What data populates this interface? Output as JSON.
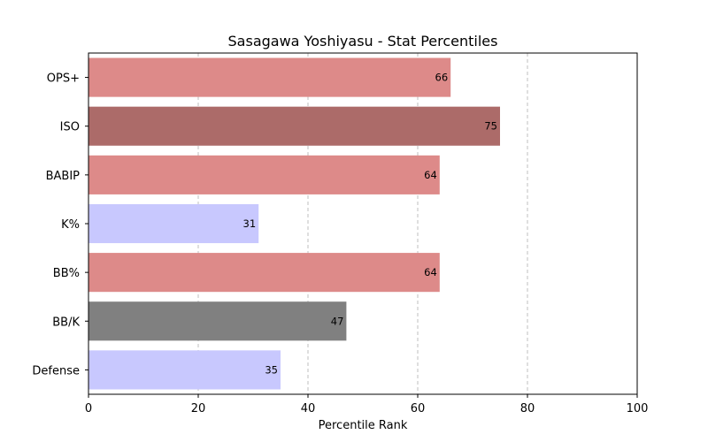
{
  "chart_data": {
    "type": "bar",
    "orientation": "horizontal",
    "title": "Sasagawa Yoshiyasu - Stat Percentiles",
    "xlabel": "Percentile Rank",
    "ylabel": "",
    "xlim": [
      0,
      100
    ],
    "xticks": [
      "0",
      "20",
      "40",
      "60",
      "80",
      "100"
    ],
    "grid": "vertical-dashed",
    "legend": "none",
    "categories": [
      "OPS+",
      "ISO",
      "BABIP",
      "K%",
      "BB%",
      "BB/K",
      "Defense"
    ],
    "values": [
      66,
      75,
      64,
      31,
      64,
      47,
      35
    ],
    "value_labels": [
      "66",
      "75",
      "64",
      "31",
      "64",
      "47",
      "35"
    ],
    "colors": [
      "#dd8a89",
      "#ac6b69",
      "#dd8a89",
      "#c8c8fe",
      "#dd8a89",
      "#808080",
      "#c8c8fe"
    ]
  }
}
